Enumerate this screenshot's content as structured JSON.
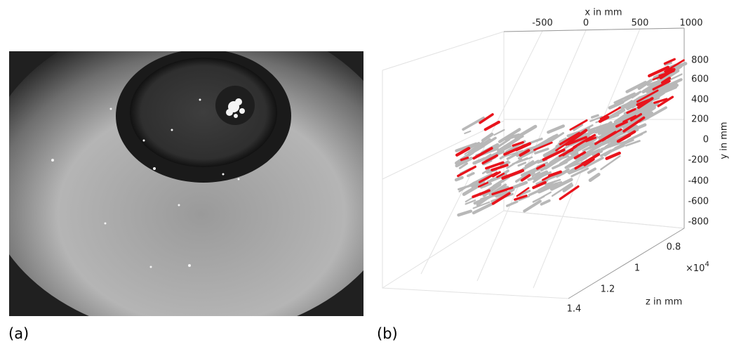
{
  "panels": [
    {
      "label": "(a)"
    },
    {
      "label": "(b)",
      "plot": {
        "x_axis": {
          "label": "x in mm",
          "ticks": [
            "-500",
            "0",
            "500",
            "1000"
          ]
        },
        "y_axis": {
          "label": "y in mm",
          "ticks": [
            "800",
            "600",
            "400",
            "200",
            "0",
            "-200",
            "-400",
            "-600",
            "-800"
          ]
        },
        "z_axis": {
          "label": "z in mm",
          "ticks": [
            "0.8",
            "1",
            "1.2",
            "1.4"
          ],
          "multiplier_base": "×10",
          "multiplier_exponent": "4"
        }
      }
    }
  ]
}
